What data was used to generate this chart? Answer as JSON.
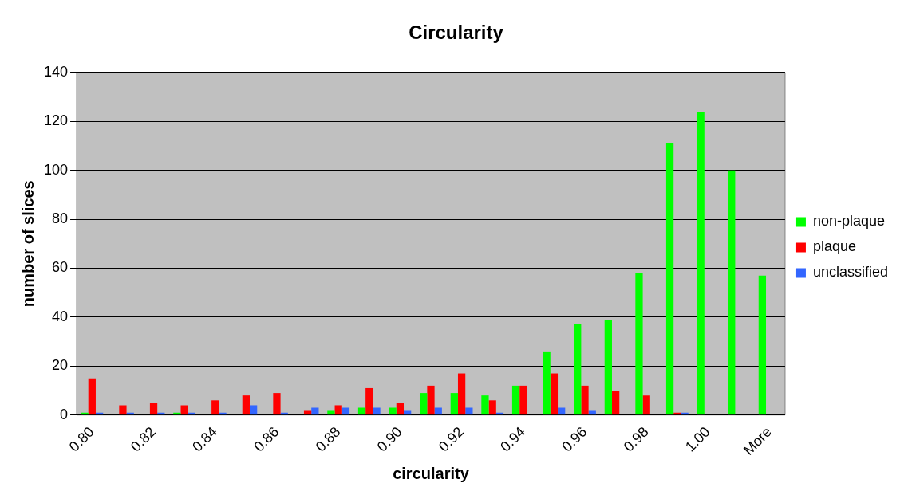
{
  "chart_data": {
    "type": "bar",
    "title": "Circularity",
    "xlabel": "circularity",
    "ylabel": "number of slices",
    "categories": [
      "0.80",
      null,
      "0.82",
      null,
      "0.84",
      null,
      "0.86",
      null,
      "0.88",
      null,
      "0.90",
      null,
      "0.92",
      null,
      "0.94",
      null,
      "0.96",
      null,
      "0.98",
      null,
      "1.00",
      null,
      "More"
    ],
    "series": [
      {
        "name": "non-plaque",
        "color": "#00ff00",
        "values": [
          1,
          0,
          0,
          1,
          0,
          0,
          0,
          0,
          2,
          3,
          3,
          9,
          9,
          8,
          12,
          26,
          37,
          39,
          58,
          111,
          124,
          100,
          57
        ]
      },
      {
        "name": "plaque",
        "color": "#ff0000",
        "values": [
          15,
          4,
          5,
          4,
          6,
          8,
          9,
          2,
          4,
          11,
          5,
          12,
          17,
          6,
          12,
          17,
          12,
          10,
          8,
          1,
          0,
          0,
          0
        ]
      },
      {
        "name": "unclassified",
        "color": "#3366ff",
        "values": [
          1,
          1,
          1,
          1,
          1,
          4,
          1,
          3,
          3,
          3,
          2,
          3,
          3,
          1,
          0,
          3,
          2,
          0,
          0,
          1,
          0,
          0,
          0
        ]
      }
    ],
    "ylim": [
      0,
      140
    ],
    "yticks": [
      0,
      20,
      40,
      60,
      80,
      100,
      120,
      140
    ],
    "grid": "y",
    "legend": "right"
  }
}
